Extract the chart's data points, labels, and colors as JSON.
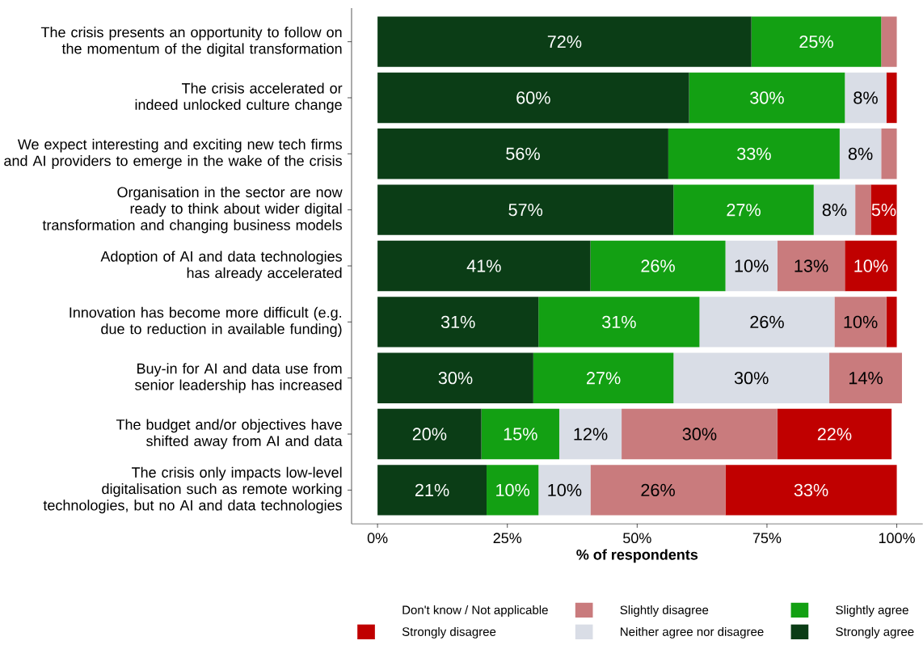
{
  "chart_data": {
    "type": "bar",
    "orientation": "horizontal",
    "stacked": true,
    "legend": "bottom",
    "xlabel": "% of respondents",
    "categories": [
      "The crisis presents an opportunity to follow on the momentum of the digital transformation",
      "The crisis accelerated or indeed unlocked culture change",
      "We expect interesting and exciting new tech firms and AI providers to emerge in the wake of the crisis",
      "Organisation in the sector are now ready to think about wider digital transformation and changing business models",
      "Adoption of AI and data technologies has already accelerated",
      "Innovation has become more difficult (e.g. due to reduction in available funding)",
      "Buy-in for AI and data use from senior leadership has increased",
      "The budget and/or objectives have shifted away from AI and data",
      "The crisis only impacts low-level digitalisation such as remote working technologies, but no AI and data technologies"
    ],
    "xlim": [
      -5,
      105
    ],
    "xticks": [
      {
        "value": 0,
        "label": "0%"
      },
      {
        "value": 25,
        "label": "25%"
      },
      {
        "value": 50,
        "label": "50%"
      },
      {
        "value": 75,
        "label": "75%"
      },
      {
        "value": 100,
        "label": "100%"
      }
    ],
    "series": [
      {
        "name": "Strongly agree",
        "color": "#0b3d16",
        "values": [
          72,
          60,
          56,
          57,
          41,
          31,
          30,
          20,
          21
        ],
        "value_labels": [
          "72%",
          "60%",
          "56%",
          "57%",
          "41%",
          "31%",
          "30%",
          "20%",
          "21%"
        ]
      },
      {
        "name": "Slightly agree",
        "color": "#13a013",
        "values": [
          25,
          30,
          33,
          27,
          26,
          31,
          27,
          15,
          10
        ],
        "value_labels": [
          "25%",
          "30%",
          "33%",
          "27%",
          "26%",
          "31%",
          "27%",
          "15%",
          "10%"
        ]
      },
      {
        "name": "Neither agree nor disagree",
        "color": "#d9dde6",
        "values": [
          0,
          8,
          8,
          8,
          10,
          26,
          30,
          12,
          10
        ],
        "value_labels": [
          null,
          "8%",
          "8%",
          "8%",
          "10%",
          "26%",
          "30%",
          "12%",
          "10%"
        ]
      },
      {
        "name": "Slightly disagree",
        "color": "#c97b7d",
        "values": [
          3,
          0,
          3,
          3,
          13,
          10,
          14,
          30,
          26
        ],
        "value_labels": [
          null,
          null,
          null,
          null,
          "13%",
          "10%",
          "14%",
          "30%",
          "26%"
        ]
      },
      {
        "name": "Strongly disagree",
        "color": "#c00000",
        "values": [
          0,
          2,
          0,
          5,
          10,
          2,
          0,
          22,
          33
        ],
        "value_labels": [
          null,
          null,
          null,
          "5%",
          "10%",
          null,
          null,
          "22%",
          "33%"
        ]
      },
      {
        "name": "Don't know / Not applicable",
        "values": [
          null,
          null,
          null,
          null,
          null,
          null,
          null,
          null,
          null
        ]
      }
    ]
  }
}
